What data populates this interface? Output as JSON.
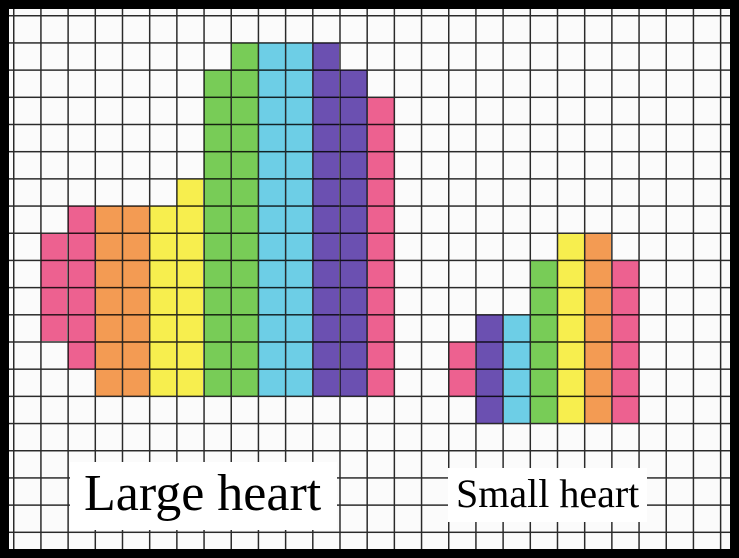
{
  "colors": {
    "pink": "#ee3f7a",
    "orange": "#f6882e",
    "yellow": "#fbef28",
    "green": "#5cc633",
    "blue": "#4fc8e6",
    "purple": "#4d2aa3"
  },
  "large_heart": {
    "label": "Large heart",
    "columns": [
      "pink",
      "pink",
      "orange",
      "orange",
      "yellow",
      "yellow",
      "green",
      "green",
      "blue",
      "blue",
      "purple",
      "purple",
      "pink"
    ]
  },
  "small_heart": {
    "label": "Small heart",
    "columns": [
      "pink",
      "purple",
      "blue",
      "green",
      "yellow",
      "orange",
      "pink"
    ]
  }
}
